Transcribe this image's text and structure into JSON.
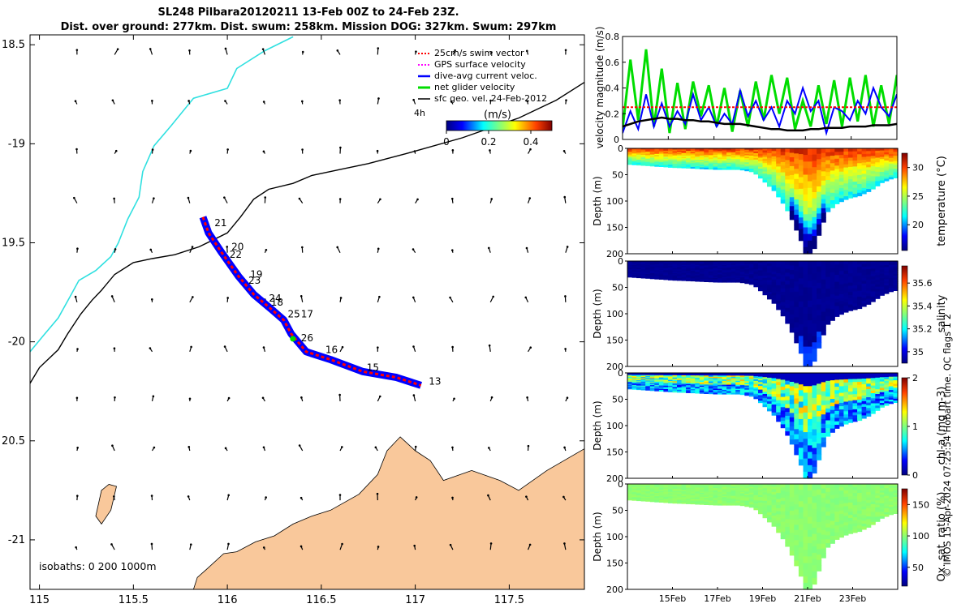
{
  "header": {
    "title_line1": "SL248 Pilbara20120211 13-Feb 00Z to 24-Feb 23Z.",
    "title_line2": "Dist. over ground: 277km. Dist. swum: 258km. Mission DOG: 327km. Swum: 297km"
  },
  "credit": "© IMOS 15-Apr-2024 07:25:54 Hobart time. QC flags 1  2",
  "colors": {
    "land": "#f9c89b",
    "swim": "#ff0000",
    "dive_avg": "#0000ff",
    "net": "#00dd00",
    "isobath_0": "#000000",
    "isobath_200": "#000000",
    "isobath_1000": "#30e0e0"
  },
  "chart_data": [
    {
      "type": "map",
      "xlim": [
        114.95,
        117.9
      ],
      "ylim": [
        -21.25,
        -18.45
      ],
      "x_ticks": [
        115,
        115.5,
        116,
        116.5,
        117,
        117.5
      ],
      "x_tick_labels": [
        "115",
        "115.5",
        "116",
        "116.5",
        "117",
        "117.5"
      ],
      "y_ticks": [
        -18.5,
        -19,
        -19.5,
        -20,
        -20.5,
        -21
      ],
      "y_tick_labels": [
        "18.5",
        "-19",
        "19.5",
        "-20",
        "20.5",
        "-21"
      ],
      "legend": {
        "entries": [
          "25cm/s swim vector",
          "GPS surface velocity",
          "dive-avg current veloc.",
          "net glider velocity",
          "sfc geo. vel. 24-Feb-2012"
        ],
        "scale_label": "4h",
        "colorbar_label": "(m/s)",
        "colorbar_tick_labels": [
          "0",
          "0.2",
          "0.4"
        ],
        "colorbar_ticks": [
          0,
          0.2,
          0.4
        ],
        "colorbar_range": [
          0,
          0.5
        ]
      },
      "isobath_label": "isobaths: 0   200  1000m",
      "track": [
        [
          115.87,
          -19.37
        ],
        [
          115.9,
          -19.45
        ],
        [
          115.97,
          -19.55
        ],
        [
          116.06,
          -19.67
        ],
        [
          116.14,
          -19.76
        ],
        [
          116.24,
          -19.84
        ],
        [
          116.3,
          -19.89
        ],
        [
          116.34,
          -19.96
        ],
        [
          116.42,
          -20.05
        ],
        [
          116.55,
          -20.09
        ],
        [
          116.72,
          -20.15
        ],
        [
          116.9,
          -20.18
        ],
        [
          117.03,
          -20.22
        ]
      ],
      "day_labels": [
        {
          "text": "21",
          "lon": 115.91,
          "lat": -19.4
        },
        {
          "text": "20",
          "lon": 116.0,
          "lat": -19.52
        },
        {
          "text": "22",
          "lon": 115.99,
          "lat": -19.56
        },
        {
          "text": "19",
          "lon": 116.1,
          "lat": -19.66
        },
        {
          "text": "23",
          "lon": 116.09,
          "lat": -19.69
        },
        {
          "text": "24",
          "lon": 116.2,
          "lat": -19.78
        },
        {
          "text": "18",
          "lon": 116.21,
          "lat": -19.8
        },
        {
          "text": "25",
          "lon": 116.3,
          "lat": -19.86
        },
        {
          "text": "17",
          "lon": 116.37,
          "lat": -19.86
        },
        {
          "text": "26",
          "lon": 116.37,
          "lat": -19.98
        },
        {
          "text": "16",
          "lon": 116.5,
          "lat": -20.04
        },
        {
          "text": "15",
          "lon": 116.72,
          "lat": -20.13
        },
        {
          "text": "13",
          "lon": 117.05,
          "lat": -20.2
        }
      ],
      "isobath_200": [
        [
          114.95,
          -20.21
        ],
        [
          115.0,
          -20.13
        ],
        [
          115.1,
          -20.04
        ],
        [
          115.15,
          -19.96
        ],
        [
          115.22,
          -19.86
        ],
        [
          115.28,
          -19.79
        ],
        [
          115.33,
          -19.74
        ],
        [
          115.4,
          -19.66
        ],
        [
          115.5,
          -19.6
        ],
        [
          115.6,
          -19.58
        ],
        [
          115.72,
          -19.56
        ],
        [
          115.85,
          -19.52
        ],
        [
          116.0,
          -19.45
        ],
        [
          116.07,
          -19.37
        ],
        [
          116.14,
          -19.28
        ],
        [
          116.22,
          -19.23
        ],
        [
          116.35,
          -19.2
        ],
        [
          116.45,
          -19.16
        ],
        [
          116.6,
          -19.13
        ],
        [
          116.75,
          -19.1
        ],
        [
          116.95,
          -19.05
        ],
        [
          117.25,
          -18.97
        ],
        [
          117.55,
          -18.87
        ],
        [
          117.75,
          -18.78
        ],
        [
          117.9,
          -18.69
        ]
      ],
      "isobath_1000": [
        [
          114.95,
          -20.05
        ],
        [
          115.02,
          -19.97
        ],
        [
          115.1,
          -19.88
        ],
        [
          115.17,
          -19.76
        ],
        [
          115.21,
          -19.69
        ],
        [
          115.3,
          -19.64
        ],
        [
          115.38,
          -19.57
        ],
        [
          115.42,
          -19.5
        ],
        [
          115.47,
          -19.38
        ],
        [
          115.53,
          -19.27
        ],
        [
          115.55,
          -19.14
        ],
        [
          115.61,
          -19.01
        ],
        [
          115.7,
          -18.91
        ],
        [
          115.82,
          -18.77
        ],
        [
          116.0,
          -18.72
        ],
        [
          116.05,
          -18.62
        ],
        [
          116.2,
          -18.53
        ],
        [
          116.35,
          -18.46
        ]
      ],
      "coastline": [
        [
          115.82,
          -21.25
        ],
        [
          115.84,
          -21.19
        ],
        [
          115.9,
          -21.14
        ],
        [
          115.98,
          -21.07
        ],
        [
          116.05,
          -21.06
        ],
        [
          116.15,
          -21.01
        ],
        [
          116.25,
          -20.98
        ],
        [
          116.35,
          -20.92
        ],
        [
          116.45,
          -20.88
        ],
        [
          116.55,
          -20.85
        ],
        [
          116.7,
          -20.77
        ],
        [
          116.8,
          -20.67
        ],
        [
          116.85,
          -20.55
        ],
        [
          116.92,
          -20.48
        ],
        [
          117.0,
          -20.55
        ],
        [
          117.08,
          -20.6
        ],
        [
          117.15,
          -20.7
        ],
        [
          117.3,
          -20.65
        ],
        [
          117.45,
          -20.7
        ],
        [
          117.55,
          -20.75
        ],
        [
          117.7,
          -20.65
        ],
        [
          117.9,
          -20.54
        ],
        [
          117.9,
          -21.25
        ]
      ],
      "island": [
        [
          115.3,
          -20.88
        ],
        [
          115.33,
          -20.75
        ],
        [
          115.37,
          -20.72
        ],
        [
          115.41,
          -20.73
        ],
        [
          115.38,
          -20.85
        ],
        [
          115.33,
          -20.92
        ]
      ]
    },
    {
      "type": "line",
      "ylabel": "velocity magnitude (m/s)",
      "ylim": [
        0,
        0.8
      ],
      "y_ticks": [
        0,
        0.2,
        0.4,
        0.6,
        0.8
      ],
      "y_tick_labels": [
        "0",
        "0.2",
        "0.4",
        "0.6",
        "0.8"
      ],
      "xlim": [
        13,
        25
      ],
      "x_ticks": [
        15,
        17,
        19,
        21,
        23
      ],
      "series": [
        {
          "color": "#00dd00",
          "values": [
            0.08,
            0.62,
            0.15,
            0.7,
            0.1,
            0.55,
            0.05,
            0.44,
            0.08,
            0.45,
            0.18,
            0.42,
            0.1,
            0.4,
            0.06,
            0.38,
            0.1,
            0.45,
            0.15,
            0.5,
            0.2,
            0.48,
            0.08,
            0.3,
            0.1,
            0.42,
            0.12,
            0.46,
            0.1,
            0.48,
            0.14,
            0.5,
            0.1,
            0.42,
            0.12,
            0.5
          ]
        },
        {
          "color": "#0000ff",
          "values": [
            0.05,
            0.22,
            0.08,
            0.35,
            0.1,
            0.28,
            0.1,
            0.22,
            0.12,
            0.35,
            0.15,
            0.25,
            0.1,
            0.2,
            0.12,
            0.38,
            0.18,
            0.3,
            0.15,
            0.25,
            0.1,
            0.3,
            0.2,
            0.4,
            0.22,
            0.3,
            0.05,
            0.25,
            0.22,
            0.15,
            0.3,
            0.2,
            0.4,
            0.25,
            0.18,
            0.35
          ]
        },
        {
          "color": "#ff0000",
          "values": [
            0.25,
            0.25,
            0.25,
            0.25,
            0.25,
            0.25,
            0.25,
            0.25,
            0.25,
            0.25,
            0.25,
            0.25,
            0.25,
            0.25,
            0.25,
            0.25,
            0.25,
            0.25,
            0.25,
            0.25,
            0.25,
            0.25,
            0.25,
            0.25,
            0.25,
            0.25,
            0.25,
            0.25,
            0.25,
            0.25,
            0.25,
            0.25,
            0.25,
            0.25,
            0.25,
            0.25
          ]
        },
        {
          "color": "#000000",
          "values": [
            0.1,
            0.12,
            0.14,
            0.15,
            0.16,
            0.17,
            0.16,
            0.16,
            0.15,
            0.15,
            0.14,
            0.14,
            0.13,
            0.12,
            0.12,
            0.12,
            0.11,
            0.1,
            0.09,
            0.08,
            0.08,
            0.07,
            0.07,
            0.07,
            0.08,
            0.08,
            0.09,
            0.09,
            0.09,
            0.1,
            0.1,
            0.1,
            0.11,
            0.11,
            0.11,
            0.12
          ]
        }
      ]
    },
    {
      "type": "heatmap",
      "name": "temperature",
      "ylabel": "Depth (m)",
      "colorbar_label": "temperature (°C)",
      "colorbar_ticks": [
        20,
        25,
        30
      ],
      "colorbar_tick_labels": [
        "20",
        "25",
        "30"
      ],
      "colorbar_range": [
        15.5,
        32.5
      ],
      "surface_value": 30.5,
      "deep_value": 21.5,
      "bottom_value": 17
    },
    {
      "type": "heatmap",
      "name": "salinity",
      "ylabel": "Depth (m)",
      "colorbar_label": "salinity",
      "colorbar_ticks": [
        35,
        35.2,
        35.4,
        35.6
      ],
      "colorbar_tick_labels": [
        "35",
        "35.2",
        "35.4",
        "35.6"
      ],
      "colorbar_range": [
        34.9,
        35.75
      ],
      "surface_value": 34.92,
      "deep_value": 34.92,
      "bottom_value": 35.05
    },
    {
      "type": "heatmap",
      "name": "chlorophyll",
      "ylabel": "Depth (m)",
      "colorbar_label": "chl-a (mg m-3)",
      "colorbar_ticks": [
        0,
        1,
        2
      ],
      "colorbar_tick_labels": [
        "0",
        "1",
        "2"
      ],
      "colorbar_range": [
        0,
        2
      ],
      "surface_value": 0.15,
      "deep_value": 1.0,
      "bottom_value": 0.3
    },
    {
      "type": "heatmap",
      "name": "oxygen",
      "ylabel": "Depth (m)",
      "colorbar_label": "Ox. sat. ratio (%)",
      "colorbar_ticks": [
        50,
        100,
        150
      ],
      "colorbar_tick_labels": [
        "50",
        "100",
        "150"
      ],
      "colorbar_range": [
        20,
        175
      ],
      "surface_value": 100,
      "deep_value": 100,
      "bottom_value": 100
    }
  ],
  "section_axes": {
    "depth_ticks": [
      0,
      50,
      100,
      150,
      200
    ],
    "depth_tick_labels": [
      "0",
      "50",
      "100",
      "150",
      "200"
    ],
    "depth_range": [
      0,
      200
    ],
    "time_ticks": [
      15,
      17,
      19,
      21,
      23
    ],
    "time_tick_labels": [
      "15Feb",
      "17Feb",
      "19Feb",
      "21Feb",
      "23Feb"
    ],
    "time_range": [
      13,
      25
    ],
    "bottom_depth": [
      [
        13,
        30
      ],
      [
        14,
        33
      ],
      [
        15,
        36
      ],
      [
        16,
        38
      ],
      [
        17,
        40
      ],
      [
        18,
        40
      ],
      [
        18.6,
        45
      ],
      [
        19,
        60
      ],
      [
        19.5,
        80
      ],
      [
        20,
        110
      ],
      [
        20.3,
        135
      ],
      [
        20.5,
        155
      ],
      [
        20.7,
        175
      ],
      [
        20.9,
        200
      ],
      [
        21.2,
        200
      ],
      [
        21.4,
        180
      ],
      [
        21.6,
        150
      ],
      [
        21.9,
        120
      ],
      [
        22.3,
        105
      ],
      [
        22.8,
        95
      ],
      [
        23.3,
        90
      ],
      [
        23.8,
        80
      ],
      [
        24.3,
        65
      ],
      [
        24.7,
        58
      ],
      [
        25,
        55
      ]
    ]
  }
}
